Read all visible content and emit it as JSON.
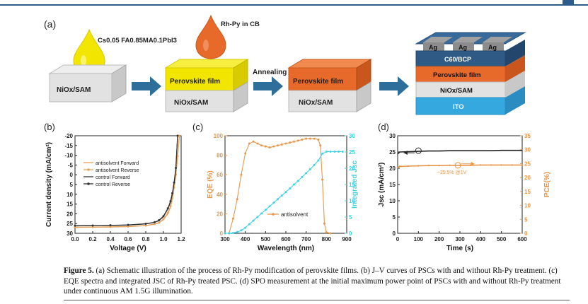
{
  "schematic": {
    "panel_label": "(a)",
    "drop1_label": "Cs0.05 FA0.85MA0.1PbI3",
    "drop2_label": "Rh-Py in CB",
    "block1_label": "NiOx/SAM",
    "block2_top_label": "Perovskite film",
    "block2_bottom_label": "NiOx/SAM",
    "arrow2_label": "Annealing",
    "block3_top_label": "Perovskite film",
    "block3_bottom_label": "NiOx/SAM",
    "device_layers": [
      "Ag",
      "Ag",
      "Ag",
      "C60/BCP",
      "Perovskite film",
      "NiOx/SAM",
      "ITO"
    ],
    "colors": {
      "yellow": "#f2e600",
      "orange": "#e86a2a",
      "gray": "#d9d9d9",
      "ito": "#35a8e0",
      "navy": "#2f5a86",
      "arrow": "#2d6e9a"
    }
  },
  "chart_data": [
    {
      "panel": "(b)",
      "type": "line",
      "xlabel": "Voltage (V)",
      "ylabel": "Current density (mA/cm²)",
      "xlim": [
        0.0,
        1.2
      ],
      "ylim": [
        30,
        -20
      ],
      "xticks": [
        "0.0",
        "0.2",
        "0.4",
        "0.6",
        "0.8",
        "1.0",
        "1.2"
      ],
      "yticks": [
        "-20",
        "-15",
        "-10",
        "-5",
        "0",
        "5",
        "10",
        "15",
        "20",
        "25",
        "30"
      ],
      "legend_position": "upper-left",
      "series": [
        {
          "name": "antisolvent Forward",
          "color": "#e8a15a",
          "marker": "none",
          "x": [
            0,
            0.2,
            0.4,
            0.6,
            0.8,
            0.9,
            0.95,
            1.0,
            1.05,
            1.08,
            1.1,
            1.12,
            1.14,
            1.16,
            1.18
          ],
          "y": [
            27.0,
            26.9,
            26.8,
            26.6,
            26.1,
            25.4,
            24.6,
            23.0,
            20.0,
            16.5,
            12.5,
            7.0,
            0.5,
            -9.0,
            -20.0
          ]
        },
        {
          "name": "antisolvent Reverse",
          "color": "#e8a15a",
          "marker": "o",
          "x": [
            0,
            0.2,
            0.4,
            0.6,
            0.8,
            0.9,
            0.95,
            1.0,
            1.05,
            1.08,
            1.1,
            1.12,
            1.14,
            1.16,
            1.18
          ],
          "y": [
            26.9,
            26.8,
            26.7,
            26.5,
            26.0,
            25.3,
            24.5,
            22.8,
            19.5,
            16.0,
            12.0,
            6.5,
            0.0,
            -9.5,
            -20.0
          ]
        },
        {
          "name": "control Forward",
          "color": "#333333",
          "marker": "none",
          "x": [
            0,
            0.2,
            0.4,
            0.6,
            0.8,
            0.9,
            0.95,
            1.0,
            1.05,
            1.08,
            1.1,
            1.12,
            1.14,
            1.16
          ],
          "y": [
            26.2,
            26.1,
            26.0,
            25.8,
            25.2,
            24.4,
            23.5,
            21.5,
            17.5,
            14.0,
            10.0,
            4.5,
            -3.0,
            -20.0
          ]
        },
        {
          "name": "control Reverse",
          "color": "#333333",
          "marker": "o",
          "x": [
            0,
            0.2,
            0.4,
            0.6,
            0.8,
            0.9,
            0.95,
            1.0,
            1.05,
            1.08,
            1.1,
            1.12,
            1.14,
            1.16
          ],
          "y": [
            26.1,
            26.0,
            25.9,
            25.7,
            25.1,
            24.3,
            23.3,
            21.2,
            17.2,
            13.5,
            9.5,
            4.0,
            -3.5,
            -20.0
          ]
        }
      ]
    },
    {
      "panel": "(c)",
      "type": "line",
      "xlabel": "Wavelength (nm)",
      "ylabel": "EQE (%)",
      "y2label": "Integrated Jsc",
      "xlim": [
        300,
        900
      ],
      "ylim": [
        0,
        100
      ],
      "y2lim": [
        0,
        30
      ],
      "xticks": [
        "300",
        "400",
        "500",
        "600",
        "700",
        "800",
        "900"
      ],
      "yticks": [
        "0",
        "20",
        "40",
        "60",
        "80",
        "100"
      ],
      "y2ticks": [
        "0",
        "5",
        "10",
        "15",
        "20",
        "25",
        "30"
      ],
      "annotation": "antisolvent",
      "series": [
        {
          "name": "antisolvent",
          "color": "#e8964a",
          "axis": "left",
          "x": [
            300,
            320,
            340,
            360,
            380,
            400,
            420,
            440,
            460,
            480,
            500,
            520,
            540,
            560,
            580,
            600,
            620,
            640,
            660,
            680,
            700,
            720,
            740,
            760,
            770,
            780,
            790,
            800,
            820
          ],
          "y": [
            0,
            0,
            15,
            35,
            60,
            82,
            92,
            94,
            92,
            90,
            89,
            88,
            89,
            90,
            91,
            92,
            93,
            94,
            95,
            96,
            97,
            97,
            97,
            96,
            90,
            55,
            10,
            1,
            0
          ]
        },
        {
          "name": "Integrated Jsc",
          "color": "#3fd3e6",
          "axis": "right",
          "x": [
            300,
            320,
            340,
            360,
            380,
            400,
            420,
            440,
            460,
            480,
            500,
            520,
            540,
            560,
            580,
            600,
            620,
            640,
            660,
            680,
            700,
            720,
            740,
            760,
            780,
            800,
            820,
            840,
            860,
            880
          ],
          "y": [
            0,
            0,
            0.1,
            0.4,
            0.9,
            1.7,
            2.8,
            3.9,
            5.0,
            6.1,
            7.2,
            8.3,
            9.4,
            10.5,
            11.6,
            12.7,
            13.8,
            15.0,
            16.1,
            17.3,
            18.5,
            19.7,
            21.0,
            22.4,
            24.5,
            25.1,
            25.1,
            25.1,
            25.1,
            25.1
          ]
        }
      ]
    },
    {
      "panel": "(d)",
      "type": "line",
      "xlabel": "Time (s)",
      "ylabel": "Jsc (mA/cm²)",
      "y2label": "PCE(%)",
      "xlim": [
        0,
        600
      ],
      "ylim": [
        0,
        30
      ],
      "y2lim": [
        0,
        35
      ],
      "xticks": [
        "0",
        "100",
        "200",
        "300",
        "400",
        "500",
        "600"
      ],
      "yticks": [
        "0",
        "5",
        "10",
        "15",
        "20",
        "25",
        "30"
      ],
      "y2ticks": [
        "0",
        "5",
        "10",
        "15",
        "20",
        "25",
        "30",
        "35"
      ],
      "annotation": "~25.5% @1V",
      "series": [
        {
          "name": "Jsc",
          "color": "#222222",
          "axis": "left",
          "x": [
            0,
            10,
            50,
            100,
            150,
            200,
            250,
            300,
            350,
            400,
            450,
            500,
            550,
            600
          ],
          "y": [
            24.4,
            25.0,
            25.1,
            25.2,
            25.3,
            25.3,
            25.4,
            25.4,
            25.4,
            25.4,
            25.4,
            25.5,
            25.5,
            25.5
          ]
        },
        {
          "name": "PCE",
          "color": "#e8964a",
          "axis": "right",
          "x": [
            0,
            10,
            50,
            100,
            150,
            200,
            250,
            300,
            350,
            400,
            450,
            500,
            550,
            600
          ],
          "y": [
            23.6,
            24.0,
            24.1,
            24.2,
            24.3,
            24.3,
            24.4,
            24.4,
            24.4,
            24.5,
            24.5,
            24.5,
            24.5,
            24.5
          ]
        }
      ]
    }
  ],
  "caption": {
    "figure_label": "Figure 5.",
    "text": " (a) Schematic illustration of the process of Rh-Py modification of perovskite films. (b) J–V curves of PSCs with and without Rh-Py treatment. (c) EQE spectra and integrated JSC of Rh-Py treated PSC. (d) SPO measurement at the initial maximum power point of PSCs with and without Rh-Py treatment under continuous AM 1.5G illumination."
  }
}
